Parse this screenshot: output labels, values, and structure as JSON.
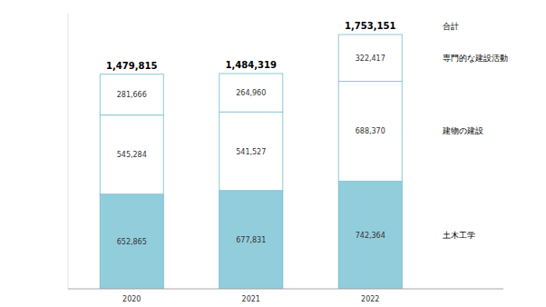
{
  "chart_data": {
    "type": "bar",
    "stacked": true,
    "data_labels": true,
    "tick_labels": "x",
    "categories": [
      "2020",
      "2021",
      "2022"
    ],
    "ylim": [
      0,
      1900000
    ],
    "series": [
      {
        "name": "土木工学",
        "color": "#92cddc",
        "values": [
          652865,
          677831,
          742364
        ],
        "value_labels": [
          "652,865",
          "677,831",
          "742,364"
        ]
      },
      {
        "name": "建物の建設",
        "color": "#ffffff",
        "values": [
          545284,
          541527,
          688370
        ],
        "value_labels": [
          "545,284",
          "541,527",
          "688,370"
        ]
      },
      {
        "name": "専門的な建設活動",
        "color": "#ffffff",
        "values": [
          281666,
          264960,
          322417
        ],
        "value_labels": [
          "281,666",
          "264,960",
          "322,417"
        ]
      }
    ],
    "totals": {
      "name": "合計",
      "values": [
        1479815,
        1484319,
        1753151
      ],
      "value_labels": [
        "1,479,815",
        "1,484,319",
        "1,753,151"
      ]
    }
  }
}
